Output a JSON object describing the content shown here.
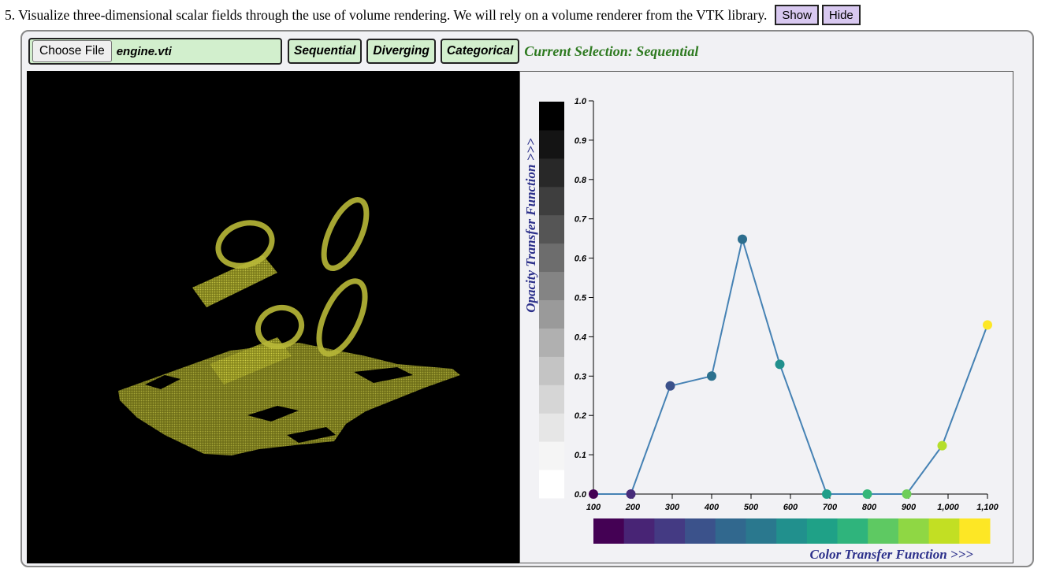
{
  "page": {
    "heading": "5. Visualize three-dimensional scalar fields through the use of volume rendering. We will rely on a volume renderer from the VTK library.",
    "show_label": "Show",
    "hide_label": "Hide"
  },
  "toolbar": {
    "choose_file_label": "Choose File",
    "file_name": "engine.vti",
    "buttons": [
      "Sequential",
      "Diverging",
      "Categorical"
    ],
    "selection_text": "Current Selection: Sequential"
  },
  "viewport": {
    "background": "#000000",
    "volume_color": "#c8c832"
  },
  "chart_data": {
    "type": "line",
    "title": "",
    "xlabel": "Color Transfer Function >>>",
    "ylabel": "Opacity Transfer Function >>>",
    "xlim": [
      100,
      1100
    ],
    "ylim": [
      0,
      1
    ],
    "x_ticks": [
      "100",
      "200",
      "300",
      "400",
      "500",
      "600",
      "700",
      "800",
      "900",
      "1,000",
      "1,100"
    ],
    "y_ticks": [
      "0.0",
      "0.1",
      "0.2",
      "0.3",
      "0.4",
      "0.5",
      "0.6",
      "0.7",
      "0.8",
      "0.9",
      "1.0"
    ],
    "line_color": "#4682b4",
    "points": [
      {
        "x": 100,
        "y": 0.0,
        "color": "#440154"
      },
      {
        "x": 195,
        "y": 0.0,
        "color": "#472c7a"
      },
      {
        "x": 295,
        "y": 0.275,
        "color": "#3b518b"
      },
      {
        "x": 400,
        "y": 0.3,
        "color": "#2c718e"
      },
      {
        "x": 478,
        "y": 0.648,
        "color": "#2d6e8e"
      },
      {
        "x": 573,
        "y": 0.33,
        "color": "#21908d"
      },
      {
        "x": 692,
        "y": 0.0,
        "color": "#1f9e89"
      },
      {
        "x": 795,
        "y": 0.0,
        "color": "#35b779"
      },
      {
        "x": 895,
        "y": 0.0,
        "color": "#6ece58"
      },
      {
        "x": 985,
        "y": 0.123,
        "color": "#b5de2b"
      },
      {
        "x": 1100,
        "y": 0.43,
        "color": "#fde725"
      }
    ],
    "opacity_legend": [
      "#ffffff",
      "#f5f5f5",
      "#e6e6e6",
      "#d6d6d6",
      "#c4c4c4",
      "#b0b0b0",
      "#9a9a9a",
      "#848484",
      "#6d6d6d",
      "#555555",
      "#3e3e3e",
      "#282828",
      "#141414",
      "#000000"
    ],
    "color_legend": [
      "#440154",
      "#482475",
      "#443a83",
      "#3b528b",
      "#31688e",
      "#2a788e",
      "#21908d",
      "#1fa187",
      "#2fb47c",
      "#5ec962",
      "#8fd744",
      "#c2df23",
      "#fde725"
    ]
  }
}
